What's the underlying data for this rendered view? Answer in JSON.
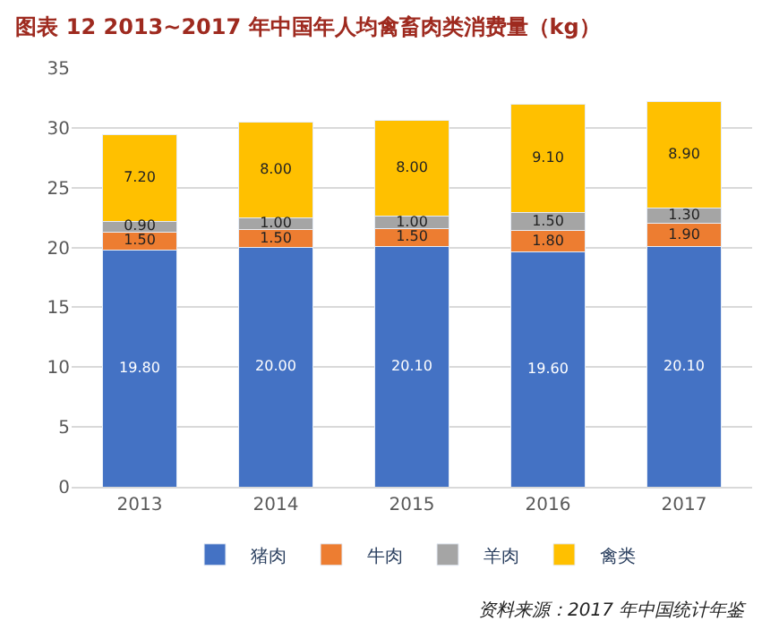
{
  "chart_data": {
    "type": "bar",
    "title": "图表 12 2013~2017 年中国年人均禽畜肉类消费量（kg）",
    "categories": [
      "2013",
      "2014",
      "2015",
      "2016",
      "2017"
    ],
    "stacked": true,
    "series": [
      {
        "name": "猪肉",
        "color": "#4472c4",
        "values": [
          19.8,
          20.0,
          20.1,
          19.6,
          20.1
        ],
        "value_labels": [
          "19.80",
          "20.00",
          "20.10",
          "19.60",
          "20.10"
        ]
      },
      {
        "name": "牛肉",
        "color": "#ed7d31",
        "values": [
          1.5,
          1.5,
          1.5,
          1.8,
          1.9
        ],
        "value_labels": [
          "1.50",
          "1.50",
          "1.50",
          "1.80",
          "1.90"
        ]
      },
      {
        "name": "羊肉",
        "color": "#a5a5a5",
        "values": [
          0.9,
          1.0,
          1.0,
          1.5,
          1.3
        ],
        "value_labels": [
          "0.90",
          "1.00",
          "1.00",
          "1.50",
          "1.30"
        ]
      },
      {
        "name": "禽类",
        "color": "#ffc000",
        "values": [
          7.2,
          8.0,
          8.0,
          9.1,
          8.9
        ],
        "value_labels": [
          "7.20",
          "8.00",
          "8.00",
          "9.10",
          "8.90"
        ]
      }
    ],
    "ylim": [
      0,
      35
    ],
    "yticks": [
      0,
      5,
      10,
      15,
      20,
      25,
      30,
      35
    ],
    "grid": "y",
    "legend": "bottom",
    "annotations": [
      "资料来源：2017 年中国统计年鉴"
    ]
  }
}
